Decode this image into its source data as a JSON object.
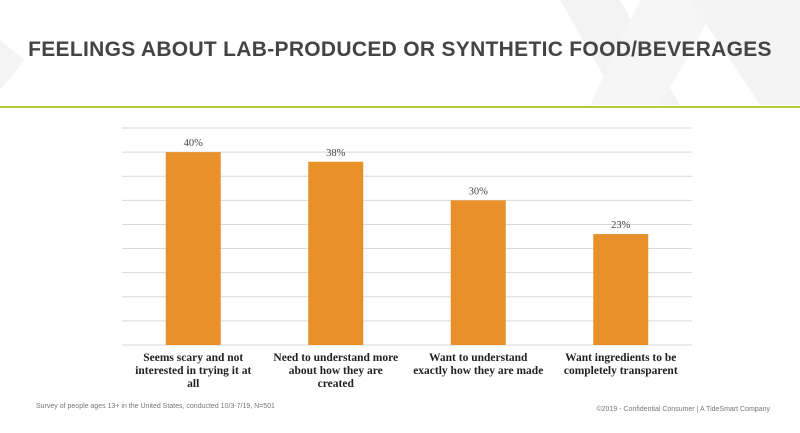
{
  "slide": {
    "title": "FEELINGS ABOUT LAB-PRODUCED OR SYNTHETIC FOOD/BEVERAGES",
    "footnote": "Survey of people ages 13+ in the United States, conducted 10/3-7/19, N=501",
    "copyright": "©2019 - Confidential Consumer  |  A TideSmart Company"
  },
  "colors": {
    "bar": "#E8912A",
    "accent_rule": "#B5CC3A",
    "grid": "#D9D9D9",
    "title": "#444444"
  },
  "chart_data": {
    "type": "bar",
    "categories": [
      [
        "Seems scary and not",
        "interested in trying it at",
        "all"
      ],
      [
        "Need to understand more",
        "about how they are",
        "created"
      ],
      [
        "Want to understand",
        "exactly how they are made"
      ],
      [
        "Want ingredients to be",
        "completely transparent"
      ]
    ],
    "values": [
      40,
      38,
      30,
      23
    ],
    "value_labels": [
      "40%",
      "38%",
      "30%",
      "23%"
    ],
    "ylim": [
      0,
      45
    ],
    "grid": true,
    "xlabel": "",
    "ylabel": ""
  }
}
